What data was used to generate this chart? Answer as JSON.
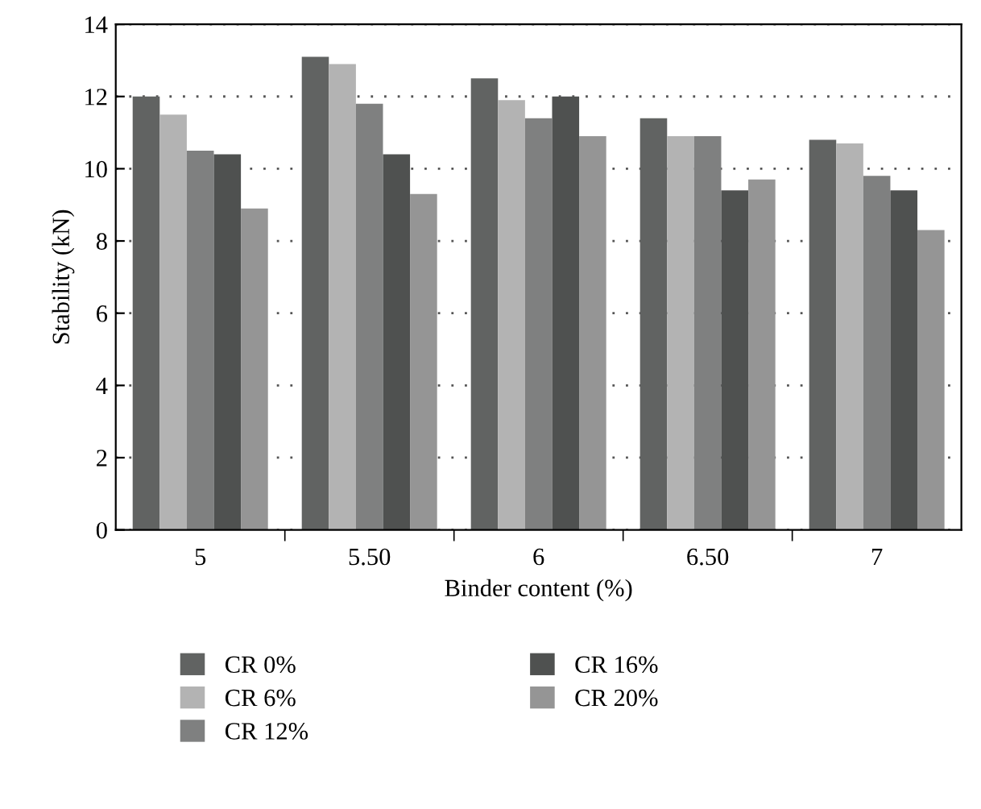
{
  "chart_data": {
    "type": "bar",
    "xlabel": "Binder content (%)",
    "ylabel": "Stability (kN)",
    "categories": [
      "5",
      "5.50",
      "6",
      "6.50",
      "7"
    ],
    "series": [
      {
        "name": "CR 0%",
        "color": "#616362",
        "values": [
          12.0,
          13.1,
          12.5,
          11.4,
          10.8
        ]
      },
      {
        "name": "CR 6%",
        "color": "#b3b3b3",
        "values": [
          11.5,
          12.9,
          11.9,
          10.9,
          10.7
        ]
      },
      {
        "name": "CR 12%",
        "color": "#7f8080",
        "values": [
          10.5,
          11.8,
          11.4,
          10.9,
          9.8
        ]
      },
      {
        "name": "CR 16%",
        "color": "#4f5150",
        "values": [
          10.4,
          10.4,
          12.0,
          9.4,
          9.4
        ]
      },
      {
        "name": "CR 20%",
        "color": "#959595",
        "values": [
          8.9,
          9.3,
          10.9,
          9.7,
          8.3
        ]
      }
    ],
    "ylim": [
      0,
      14
    ],
    "yticks": [
      0,
      2,
      4,
      6,
      8,
      10,
      12,
      14
    ],
    "grid": "y",
    "legend": "bottom"
  }
}
